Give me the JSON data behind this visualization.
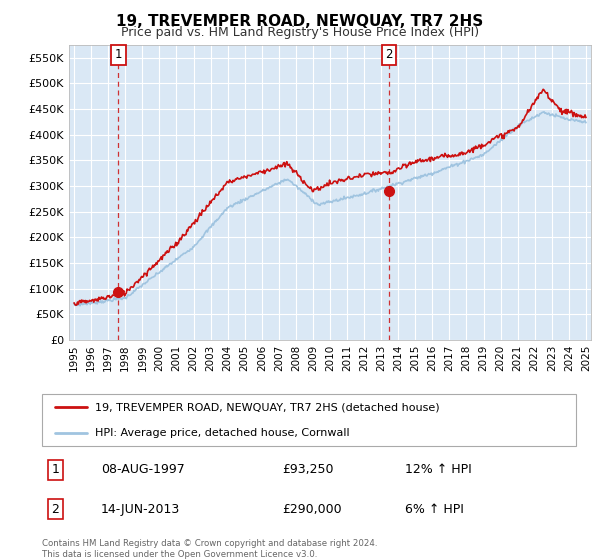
{
  "title": "19, TREVEMPER ROAD, NEWQUAY, TR7 2HS",
  "subtitle": "Price paid vs. HM Land Registry's House Price Index (HPI)",
  "bg_color": "#dae8f5",
  "ylabel_values": [
    "£0",
    "£50K",
    "£100K",
    "£150K",
    "£200K",
    "£250K",
    "£300K",
    "£350K",
    "£400K",
    "£450K",
    "£500K",
    "£550K"
  ],
  "ylim": [
    0,
    575000
  ],
  "xlim_start": 1994.7,
  "xlim_end": 2025.3,
  "hpi_color": "#a0c4e0",
  "price_color": "#cc1111",
  "point1_x": 1997.6,
  "point1_y": 93250,
  "point2_x": 2013.45,
  "point2_y": 290000,
  "legend_entry1": "19, TREVEMPER ROAD, NEWQUAY, TR7 2HS (detached house)",
  "legend_entry2": "HPI: Average price, detached house, Cornwall",
  "table_row1_num": "1",
  "table_row1_date": "08-AUG-1997",
  "table_row1_price": "£93,250",
  "table_row1_hpi": "12% ↑ HPI",
  "table_row2_num": "2",
  "table_row2_date": "14-JUN-2013",
  "table_row2_price": "£290,000",
  "table_row2_hpi": "6% ↑ HPI",
  "footer": "Contains HM Land Registry data © Crown copyright and database right 2024.\nThis data is licensed under the Open Government Licence v3.0."
}
